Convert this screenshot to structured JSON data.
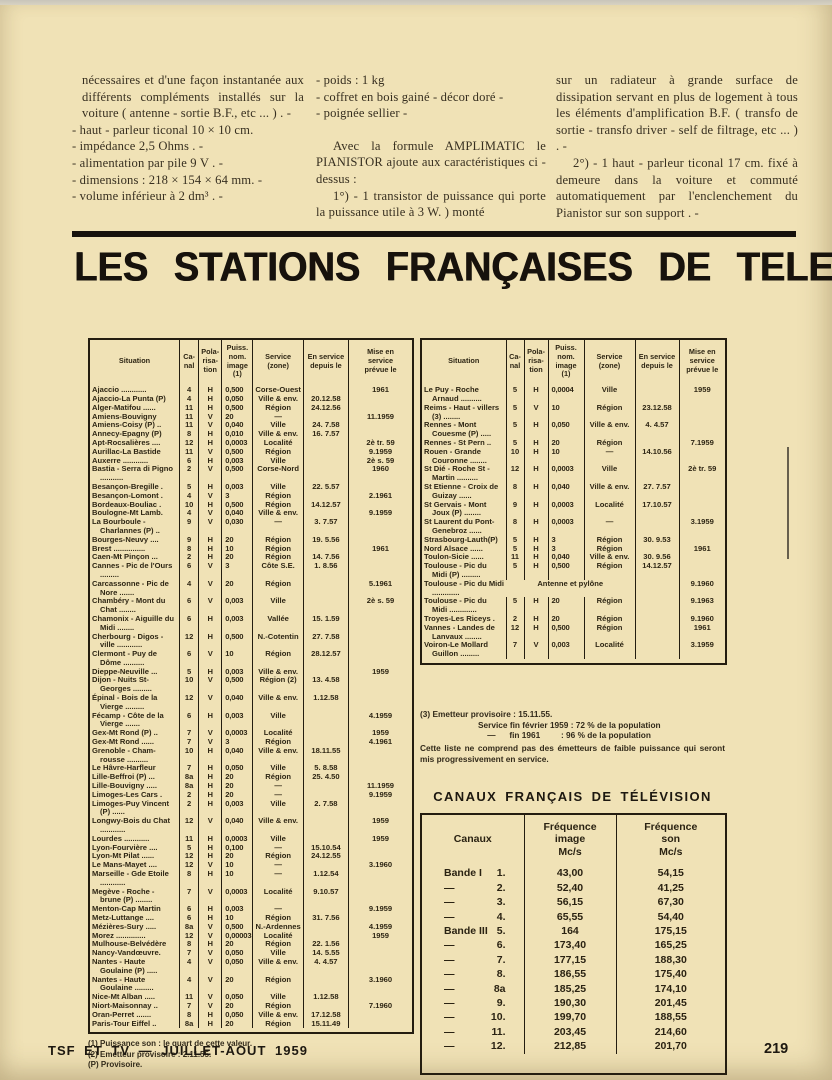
{
  "title": "LES STATIONS FRANÇAISES DE TELEVISION",
  "intro": {
    "col1": [
      "nécessaires et d'une façon instantanée aux différents compléments installés sur la voiture ( antenne - sortie B.F., etc ... ) . -",
      "- haut - parleur ticonal 10 × 10 cm.",
      "- impédance 2,5 Ohms . -",
      "- alimentation par pile 9 V . -",
      "- dimensions : 218 × 154 × 64 mm. -",
      "- volume inférieur à 2 dm³ . -"
    ],
    "col2": [
      "- poids : 1 kg",
      "- coffret en bois gainé - décor doré -",
      "- poignée sellier -",
      "Avec la formule AMPLIMATIC le PIANISTOR ajoute aux caractéristiques ci - dessus :",
      "1°) - 1 transistor de puissance qui porte la puissance utile à 3 W. ) monté"
    ],
    "col3": [
      "sur un radiateur à grande surface de dissipation servant en plus de logement à tous les éléments d'amplification B.F. ( transfo de sortie - transfo driver - self de filtrage, etc ... ) . -",
      "2°) - 1 haut - parleur ticonal 17 cm. fixé   à demeure dans la voiture et commuté automatiquement par l'enclenchement du Pianistor sur son support . -"
    ]
  },
  "station_headers": {
    "situation": "Situation",
    "canal": "Ca-\nnal",
    "pola": "Pola-\nrisa-\ntion",
    "puiss": "Puiss.\nnom.\nimage\n(1)",
    "service": "Service\n(zone)",
    "depuis": "En service\ndepuis le",
    "prevue": "Mise en\nservice\nprévue le"
  },
  "stations_left": [
    {
      "n": "Ajaccio ............",
      "c": "4",
      "p": "H",
      "w": "0,500",
      "s": "Corse-Ouest",
      "d": "",
      "m": "1961"
    },
    {
      "n": "Ajaccio-La Punta (P)",
      "c": "4",
      "p": "H",
      "w": "0,050",
      "s": "Ville & env.",
      "d": "20.12.58",
      "m": ""
    },
    {
      "n": "Alger-Matifou ......",
      "c": "11",
      "p": "H",
      "w": "0,500",
      "s": "Région",
      "d": "24.12.56",
      "m": ""
    },
    {
      "n": "Amiens-Bouvigny",
      "c": "11",
      "p": "V",
      "w": "20",
      "s": "—",
      "d": "",
      "m": "11.1959"
    },
    {
      "n": "Amiens-Coisy (P) ..",
      "c": "11",
      "p": "V",
      "w": "0,040",
      "s": "Ville",
      "d": "24. 7.58",
      "m": ""
    },
    {
      "n": "Annecy-Epagny (P)",
      "c": "8",
      "p": "H",
      "w": "0,010",
      "s": "Ville & env.",
      "d": "16. 7.57",
      "m": ""
    },
    {
      "n": "Apt-Rocsalières ....",
      "c": "12",
      "p": "H",
      "w": "0,0003",
      "s": "Localité",
      "d": "",
      "m": "2è tr. 59"
    },
    {
      "n": "Aurillac-La Bastide",
      "c": "11",
      "p": "V",
      "w": "0,500",
      "s": "Région",
      "d": "",
      "m": "9.1959"
    },
    {
      "n": "Auxerre ............",
      "c": "6",
      "p": "H",
      "w": "0,003",
      "s": "Ville",
      "d": "",
      "m": "2è s. 59"
    },
    {
      "n": "Bastia - Serra di Pigno ...........",
      "c": "2",
      "p": "V",
      "w": "0,500",
      "s": "Corse-Nord",
      "d": "",
      "m": "1960"
    },
    {
      "n": "Besançon-Bregille .",
      "c": "5",
      "p": "H",
      "w": "0,003",
      "s": "Ville",
      "d": "22. 5.57",
      "m": ""
    },
    {
      "n": "Besançon-Lomont .",
      "c": "4",
      "p": "V",
      "w": "3",
      "s": "Région",
      "d": "",
      "m": "2.1961"
    },
    {
      "n": "Bordeaux-Bouliac .",
      "c": "10",
      "p": "H",
      "w": "0,500",
      "s": "Région",
      "d": "14.12.57",
      "m": ""
    },
    {
      "n": "Boulogne-Mt Lamb.",
      "c": "4",
      "p": "V",
      "w": "0,040",
      "s": "Ville & env.",
      "d": "",
      "m": "9.1959"
    },
    {
      "n": "La Bourboule - Charlannes (P) ..",
      "c": "9",
      "p": "V",
      "w": "0,030",
      "s": "—",
      "d": "3. 7.57",
      "m": ""
    },
    {
      "n": "Bourges-Neuvy ....",
      "c": "9",
      "p": "H",
      "w": "20",
      "s": "Région",
      "d": "19. 5.56",
      "m": ""
    },
    {
      "n": "Brest ...............",
      "c": "8",
      "p": "H",
      "w": "10",
      "s": "Région",
      "d": "",
      "m": "1961"
    },
    {
      "n": "Caen-Mt Pinçon ...",
      "c": "2",
      "p": "H",
      "w": "20",
      "s": "Région",
      "d": "14. 7.56",
      "m": ""
    },
    {
      "n": "Cannes - Pic de l'Ours .........",
      "c": "6",
      "p": "V",
      "w": "3",
      "s": "Côte S.E.",
      "d": "1. 8.56",
      "m": ""
    },
    {
      "n": "Carcassonne - Pic de Nore .......",
      "c": "4",
      "p": "V",
      "w": "20",
      "s": "Région",
      "d": "",
      "m": "5.1961"
    },
    {
      "n": "Chambéry - Mont du Chat ........",
      "c": "6",
      "p": "V",
      "w": "0,003",
      "s": "Ville",
      "d": "",
      "m": "2è s. 59"
    },
    {
      "n": "Chamonix - Aiguille du Midi ........",
      "c": "6",
      "p": "H",
      "w": "0,003",
      "s": "Vallée",
      "d": "15. 1.59",
      "m": ""
    },
    {
      "n": "Cherbourg - Digos - ville ............",
      "c": "12",
      "p": "H",
      "w": "0,500",
      "s": "N.-Cotentin",
      "d": "27. 7.58",
      "m": ""
    },
    {
      "n": "Clermont - Puy de Dôme ..........",
      "c": "6",
      "p": "V",
      "w": "10",
      "s": "Région",
      "d": "28.12.57",
      "m": ""
    },
    {
      "n": "Dieppe-Neuville ...",
      "c": "5",
      "p": "H",
      "w": "0,003",
      "s": "Ville & env.",
      "d": "",
      "m": "1959"
    },
    {
      "n": "Dijon - Nuits St-Georges .........",
      "c": "10",
      "p": "V",
      "w": "0,500",
      "s": "Région (2)",
      "d": "13. 4.58",
      "m": ""
    },
    {
      "n": "Épinal - Bois de la Vierge .........",
      "c": "12",
      "p": "V",
      "w": "0,040",
      "s": "Ville & env.",
      "d": "1.12.58",
      "m": ""
    },
    {
      "n": "Fécamp - Côte de la Vierge .......",
      "c": "6",
      "p": "H",
      "w": "0,003",
      "s": "Ville",
      "d": "",
      "m": "4.1959"
    },
    {
      "n": "Gex-Mt Rond (P) ..",
      "c": "7",
      "p": "V",
      "w": "0,0003",
      "s": "Localité",
      "d": "",
      "m": "1959"
    },
    {
      "n": "Gex-Mt Rond ......",
      "c": "7",
      "p": "V",
      "w": "3",
      "s": "Région",
      "d": "",
      "m": "4.1961"
    },
    {
      "n": "Grenoble - Cham-rousse ..........",
      "c": "10",
      "p": "H",
      "w": "0,040",
      "s": "Ville & env.",
      "d": "18.11.55",
      "m": ""
    },
    {
      "n": "Le Hâvre-Harfleur",
      "c": "7",
      "p": "H",
      "w": "0,050",
      "s": "Ville",
      "d": "5. 8.58",
      "m": ""
    },
    {
      "n": "Lille-Beffroi (P) ...",
      "c": "8a",
      "p": "H",
      "w": "20",
      "s": "Région",
      "d": "25. 4.50",
      "m": ""
    },
    {
      "n": "Lille-Bouvigny .....",
      "c": "8a",
      "p": "H",
      "w": "20",
      "s": "—",
      "d": "",
      "m": "11.1959"
    },
    {
      "n": "Limoges-Les Cars .",
      "c": "2",
      "p": "H",
      "w": "20",
      "s": "—",
      "d": "",
      "m": "9.1959"
    },
    {
      "n": "Limoges-Puy Vincent (P) ......",
      "c": "2",
      "p": "H",
      "w": "0,003",
      "s": "Ville",
      "d": "2. 7.58",
      "m": ""
    },
    {
      "n": "Longwy-Bois du Chat ............",
      "c": "12",
      "p": "V",
      "w": "0,040",
      "s": "Ville & env.",
      "d": "",
      "m": "1959"
    },
    {
      "n": "Lourdes ............",
      "c": "11",
      "p": "H",
      "w": "0,0003",
      "s": "Ville",
      "d": "",
      "m": "1959"
    },
    {
      "n": "Lyon-Fourvière ....",
      "c": "5",
      "p": "H",
      "w": "0,100",
      "s": "—",
      "d": "15.10.54",
      "m": ""
    },
    {
      "n": "Lyon-Mt Pilat ......",
      "c": "12",
      "p": "H",
      "w": "20",
      "s": "Région",
      "d": "24.12.55",
      "m": ""
    },
    {
      "n": "Le Mans-Mayet ....",
      "c": "12",
      "p": "V",
      "w": "10",
      "s": "—",
      "d": "",
      "m": "3.1960"
    },
    {
      "n": "Marseille - Gde Etoile ............",
      "c": "8",
      "p": "H",
      "w": "10",
      "s": "—",
      "d": "1.12.54",
      "m": ""
    },
    {
      "n": "Megève - Roche - brune (P) ........",
      "c": "7",
      "p": "V",
      "w": "0,0003",
      "s": "Localité",
      "d": "9.10.57",
      "m": ""
    },
    {
      "n": "Menton-Cap Martin",
      "c": "6",
      "p": "H",
      "w": "0,003",
      "s": "—",
      "d": "",
      "m": "9.1959"
    },
    {
      "n": "Metz-Luttange ....",
      "c": "6",
      "p": "H",
      "w": "10",
      "s": "Région",
      "d": "31. 7.56",
      "m": ""
    },
    {
      "n": "Mézières-Sury .....",
      "c": "8a",
      "p": "V",
      "w": "0,500",
      "s": "N.-Ardennes",
      "d": "",
      "m": "4.1959"
    },
    {
      "n": "Morez ..............",
      "c": "12",
      "p": "V",
      "w": "0,00003",
      "s": "Localité",
      "d": "",
      "m": "1959"
    },
    {
      "n": "Mulhouse-Belvédère",
      "c": "8",
      "p": "H",
      "w": "20",
      "s": "Région",
      "d": "22. 1.56",
      "m": ""
    },
    {
      "n": "Nancy-Vandœuvre.",
      "c": "7",
      "p": "V",
      "w": "0,050",
      "s": "Ville",
      "d": "14. 5.55",
      "m": ""
    },
    {
      "n": "Nantes - Haute Goulaine (P) .....",
      "c": "4",
      "p": "V",
      "w": "0,050",
      "s": "Ville & env.",
      "d": "4. 4.57",
      "m": ""
    },
    {
      "n": "Nantes - Haute Goulaine .........",
      "c": "4",
      "p": "V",
      "w": "20",
      "s": "Région",
      "d": "",
      "m": "3.1960"
    },
    {
      "n": "Nice-Mt Alban .....",
      "c": "11",
      "p": "V",
      "w": "0,050",
      "s": "Ville",
      "d": "1.12.58",
      "m": ""
    },
    {
      "n": "Niort-Maisonnay ..",
      "c": "7",
      "p": "V",
      "w": "20",
      "s": "Région",
      "d": "",
      "m": "7.1960"
    },
    {
      "n": "Oran-Perret .......",
      "c": "8",
      "p": "H",
      "w": "0,050",
      "s": "Ville & env.",
      "d": "17.12.58",
      "m": ""
    },
    {
      "n": "Paris-Tour Eiffel ..",
      "c": "8a",
      "p": "H",
      "w": "20",
      "s": "Région",
      "d": "15.11.49",
      "m": ""
    }
  ],
  "stations_right": [
    {
      "n": "Le Puy - Roche Arnaud ..........",
      "c": "5",
      "p": "H",
      "w": "0,0004",
      "s": "Ville",
      "d": "",
      "m": "1959"
    },
    {
      "n": "Reims - Haut - villers (3) ........",
      "c": "5",
      "p": "V",
      "w": "10",
      "s": "Région",
      "d": "23.12.58",
      "m": ""
    },
    {
      "n": "Rennes - Mont Couesme (P) .....",
      "c": "5",
      "p": "H",
      "w": "0,050",
      "s": "Ville & env.",
      "d": "4. 4.57",
      "m": ""
    },
    {
      "n": "Rennes - St Pern ..",
      "c": "5",
      "p": "H",
      "w": "20",
      "s": "Région",
      "d": "",
      "m": "7.1959"
    },
    {
      "n": "Rouen - Grande Couronne ........",
      "c": "10",
      "p": "H",
      "w": "10",
      "s": "—",
      "d": "14.10.56",
      "m": ""
    },
    {
      "n": "St Dié - Roche St - Martin ..........",
      "c": "12",
      "p": "H",
      "w": "0,0003",
      "s": "Ville",
      "d": "",
      "m": "2è tr. 59"
    },
    {
      "n": "St Etienne - Croix de Guizay ......",
      "c": "8",
      "p": "H",
      "w": "0,040",
      "s": "Ville & env.",
      "d": "27. 7.57",
      "m": ""
    },
    {
      "n": "St Gervais - Mont Joux (P) ........",
      "c": "9",
      "p": "H",
      "w": "0,0003",
      "s": "Localité",
      "d": "17.10.57",
      "m": ""
    },
    {
      "n": "St Laurent du Pont-Genebroz ......",
      "c": "8",
      "p": "H",
      "w": "0,0003",
      "s": "—",
      "d": "",
      "m": "3.1959"
    },
    {
      "n": "Strasbourg-Lauth(P)",
      "c": "5",
      "p": "H",
      "w": "3",
      "s": "Région",
      "d": "30. 9.53",
      "m": ""
    },
    {
      "n": "Nord Alsace ......",
      "c": "5",
      "p": "H",
      "w": "3",
      "s": "Région",
      "d": "",
      "m": "1961"
    },
    {
      "n": "Toulon-Sicie ......",
      "c": "11",
      "p": "H",
      "w": "0,040",
      "s": "Ville & env.",
      "d": "30. 9.56",
      "m": ""
    },
    {
      "n": "Toulouse - Pic du Midi (P) .........",
      "c": "5",
      "p": "H",
      "w": "0,500",
      "s": "Région",
      "d": "14.12.57",
      "m": ""
    },
    {
      "n": "Toulouse - Pic du Midi .............",
      "wide": "Antenne et pylône",
      "d": "",
      "m": "9.1960"
    },
    {
      "n": "Toulouse - Pic du Midi .............",
      "c": "5",
      "p": "H",
      "w": "20",
      "s": "Région",
      "d": "",
      "m": "9.1963"
    },
    {
      "n": "Troyes-Les Riceys .",
      "c": "2",
      "p": "H",
      "w": "20",
      "s": "Région",
      "d": "",
      "m": "9.1960"
    },
    {
      "n": "Vannes - Landes de Lanvaux ........",
      "c": "12",
      "p": "H",
      "w": "0,500",
      "s": "Région",
      "d": "",
      "m": "1961"
    },
    {
      "n": "Voiron-Le Mollard Guillon .........",
      "c": "7",
      "p": "V",
      "w": "0,003",
      "s": "Localité",
      "d": "",
      "m": "3.1959"
    }
  ],
  "left_footnotes": [
    "(1) Puissance son : le quart de cette valeur.",
    "(2) Emetteur provisoire : 2.11.55.",
    "(P) Provisoire."
  ],
  "right_notes": {
    "note3": "(3) Emetteur provisoire : 15.11.55.",
    "svc1": "Service fin février 1959 : 72 % de la population",
    "svc2": "    —      fin 1961         : 96 % de la population",
    "closing": "Cette liste ne comprend pas des émetteurs de faible puissance qui seront mis progressivement en service."
  },
  "canaux": {
    "title": "CANAUX FRANÇAIS DE TÉLÉVISION",
    "headers": {
      "canaux": "Canaux",
      "image": "Fréquence\nimage\nMc/s",
      "son": "Fréquence\nson\nMc/s"
    },
    "rows": [
      {
        "band": "Bande I",
        "num": "1.",
        "image": "43,00",
        "son": "54,15"
      },
      {
        "band": "—",
        "num": "2.",
        "image": "52,40",
        "son": "41,25"
      },
      {
        "band": "—",
        "num": "3.",
        "image": "56,15",
        "son": "67,30"
      },
      {
        "band": "—",
        "num": "4.",
        "image": "65,55",
        "son": "54,40"
      },
      {
        "band": "Bande III",
        "num": "5.",
        "image": "164",
        "son": "175,15"
      },
      {
        "band": "—",
        "num": "6.",
        "image": "173,40",
        "son": "165,25"
      },
      {
        "band": "—",
        "num": "7.",
        "image": "177,15",
        "son": "188,30"
      },
      {
        "band": "—",
        "num": "8.",
        "image": "186,55",
        "son": "175,40"
      },
      {
        "band": "—",
        "num": "8a",
        "image": "185,25",
        "son": "174,10"
      },
      {
        "band": "—",
        "num": "9.",
        "image": "190,30",
        "son": "201,45"
      },
      {
        "band": "—",
        "num": "10.",
        "image": "199,70",
        "son": "188,55"
      },
      {
        "band": "—",
        "num": "11.",
        "image": "203,45",
        "son": "214,60"
      },
      {
        "band": "—",
        "num": "12.",
        "image": "212,85",
        "son": "201,70"
      }
    ]
  },
  "footer": {
    "left": "TSF ET TV — JUILLET-AOUT 1959",
    "page": "219"
  }
}
